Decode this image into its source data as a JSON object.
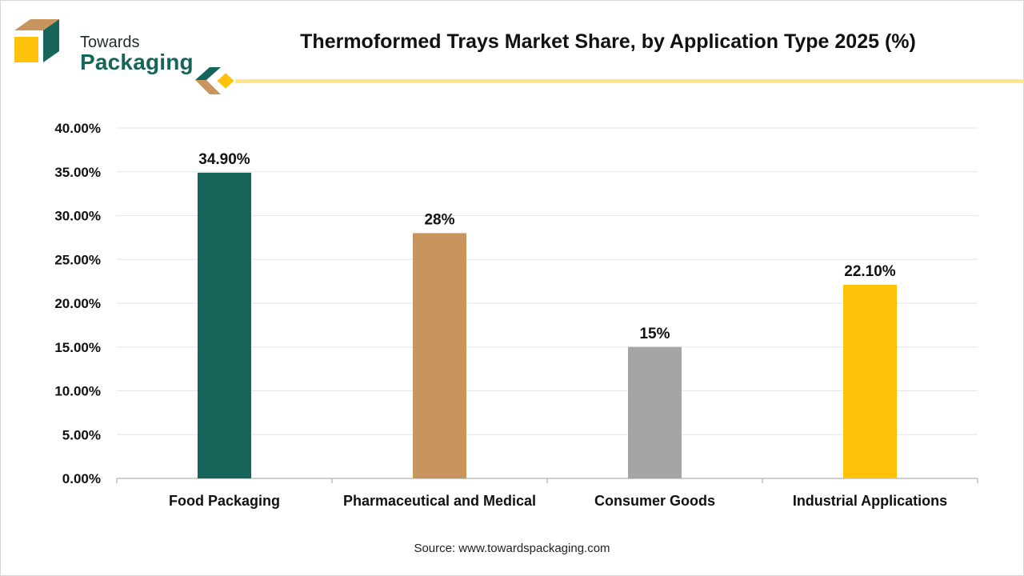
{
  "brand": {
    "line1": "Towards",
    "line2": "Packaging",
    "colors": {
      "teal": "#17655a",
      "tan": "#c9955f",
      "yellow": "#fec20a",
      "dark": "#1f2f2b"
    }
  },
  "header": {
    "title": "Thermoformed Trays Market Share, by Application Type 2025 (%)"
  },
  "footer": {
    "source": "Source: www.towardspackaging.com"
  },
  "chart_data": {
    "type": "bar",
    "title": "Thermoformed Trays Market Share, by Application Type 2025 (%)",
    "xlabel": "",
    "ylabel": "",
    "categories": [
      "Food Packaging",
      "Pharmaceutical and Medical",
      "Consumer Goods",
      "Industrial Applications"
    ],
    "values": [
      34.9,
      28,
      15,
      22.1
    ],
    "data_labels": [
      "34.90%",
      "28%",
      "15%",
      "22.10%"
    ],
    "colors": [
      "#17655a",
      "#c9955f",
      "#a5a5a5",
      "#fec20a"
    ],
    "ylim": [
      0,
      40
    ],
    "yticks": [
      0,
      5,
      10,
      15,
      20,
      25,
      30,
      35,
      40
    ],
    "ytick_labels": [
      "0.00%",
      "5.00%",
      "10.00%",
      "15.00%",
      "20.00%",
      "25.00%",
      "30.00%",
      "35.00%",
      "40.00%"
    ],
    "grid": true,
    "legend": "none"
  }
}
